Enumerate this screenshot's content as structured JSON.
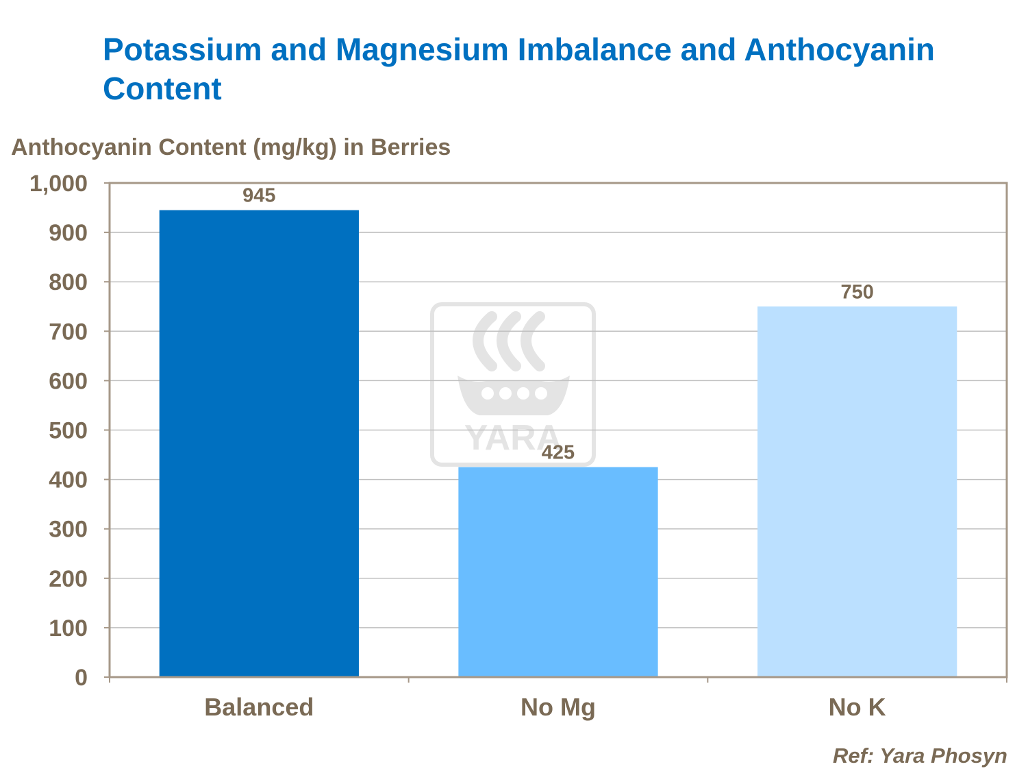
{
  "title": "Potassium and Magnesium Imbalance and Anthocyanin Content",
  "reference": "Ref: Yara Phosyn",
  "watermark": "YARA",
  "colors": {
    "title": "#0070C0",
    "text": "#7A6A55",
    "frame": "#A69888",
    "grid": "#BFBFBF",
    "watermark": "#E4E4E4"
  },
  "chart_data": {
    "type": "bar",
    "title": "Potassium and Magnesium Imbalance and Anthocyanin Content",
    "ylabel": "Anthocyanin Content (mg/kg) in Berries",
    "xlabel": "",
    "categories": [
      "Balanced",
      "No Mg",
      "No K"
    ],
    "values": [
      945,
      425,
      750
    ],
    "data_labels": [
      "945",
      "425",
      "750"
    ],
    "bar_colors": [
      "#0070C0",
      "#69BDFF",
      "#BBE0FF"
    ],
    "ylim": [
      0,
      1000
    ],
    "yticks": [
      0,
      100,
      200,
      300,
      400,
      500,
      600,
      700,
      800,
      900,
      1000
    ],
    "ytick_labels": [
      "0",
      "100",
      "200",
      "300",
      "400",
      "500",
      "600",
      "700",
      "800",
      "900",
      "1,000"
    ],
    "grid": true,
    "legend": "none"
  }
}
